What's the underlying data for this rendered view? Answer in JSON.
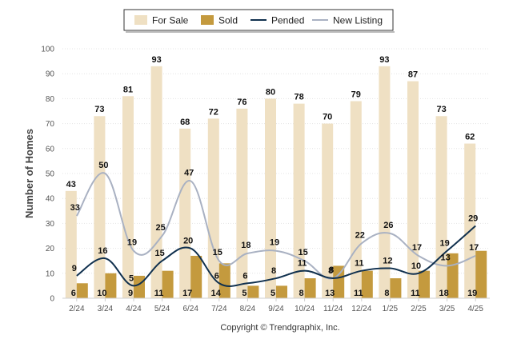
{
  "chart_data": {
    "type": "bar",
    "ylabel": "Number of Homes",
    "ylim": [
      0,
      100
    ],
    "yticks": [
      "0",
      "10",
      "20",
      "30",
      "40",
      "50",
      "60",
      "70",
      "80",
      "90",
      "100"
    ],
    "grid": true,
    "legend_position": "top-center",
    "categories": [
      "2/24",
      "3/24",
      "4/24",
      "5/24",
      "6/24",
      "7/24",
      "8/24",
      "9/24",
      "10/24",
      "11/24",
      "12/24",
      "1/25",
      "2/25",
      "3/25",
      "4/25"
    ],
    "series": [
      {
        "name": "For Sale",
        "kind": "bar",
        "color": "#efe0c3",
        "values": [
          43,
          73,
          81,
          93,
          68,
          72,
          76,
          80,
          78,
          70,
          79,
          93,
          87,
          73,
          62
        ]
      },
      {
        "name": "Sold",
        "kind": "bar",
        "color": "#c49a3e",
        "values": [
          6,
          10,
          9,
          11,
          17,
          14,
          5,
          5,
          8,
          13,
          11,
          8,
          11,
          18,
          19
        ]
      },
      {
        "name": "Pended",
        "kind": "line",
        "color": "#10304e",
        "values": [
          9,
          16,
          5,
          15,
          20,
          6,
          6,
          8,
          11,
          8,
          11,
          12,
          10,
          19,
          29
        ]
      },
      {
        "name": "New Listing",
        "kind": "line",
        "color": "#a9b1c2",
        "values": [
          33,
          50,
          19,
          25,
          47,
          15,
          18,
          19,
          15,
          8,
          22,
          26,
          17,
          13,
          17
        ]
      }
    ],
    "credit": "Copyright © Trendgraphix, Inc."
  }
}
